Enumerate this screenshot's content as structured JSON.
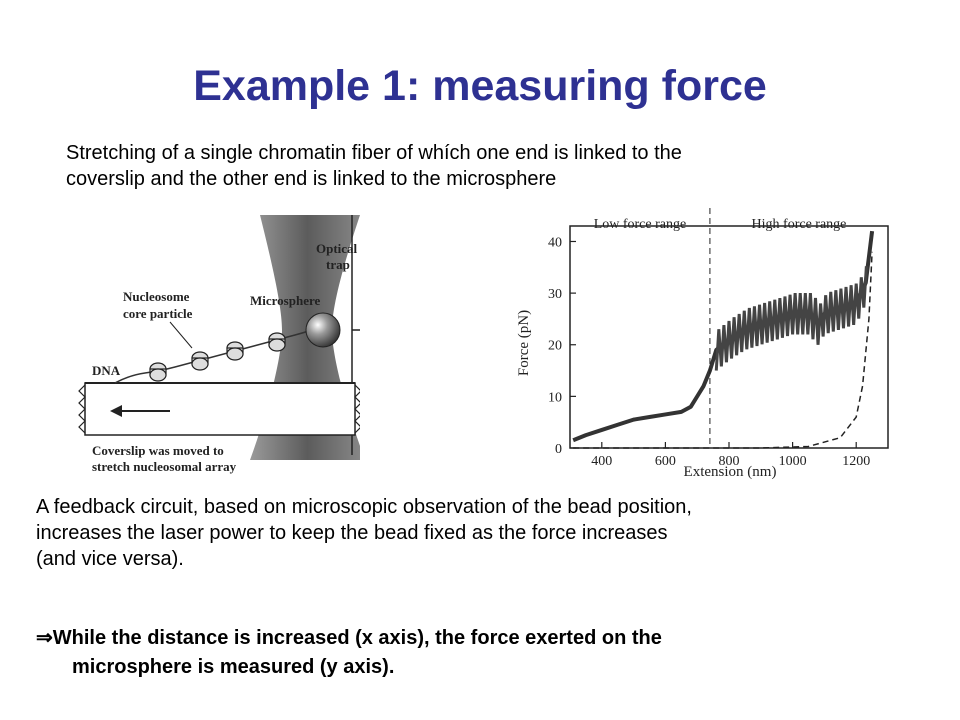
{
  "slide": {
    "title": "Example 1: measuring force",
    "intro_line1": "Stretching of a single chromatin fiber of whích one end is linked to the",
    "intro_line2": "coverslip and the other end is linked to the microsphere",
    "feedback_line1": "A feedback circuit, based on microscopic observation of the bead position,",
    "feedback_line2": "increases the laser power to keep the bead fixed as the force increases",
    "feedback_line3": "(and vice versa).",
    "arrow_symbol": "⇒",
    "conclusion_line1": "While the distance is increased (x axis), the force exerted on the",
    "conclusion_line2": "microsphere is measured (y axis)."
  },
  "diagram": {
    "optical_trap_label_1": "Optical",
    "optical_trap_label_2": "trap",
    "microsphere_label": "Microsphere",
    "nucleosome_label_1": "Nucleosome",
    "nucleosome_label_2": "core particle",
    "dna_label": "DNA",
    "coverslip_label_1": "Coverslip was moved to",
    "coverslip_label_2": "stretch nucleosomal array"
  },
  "chart_data": {
    "type": "line",
    "xlabel": "Extension (nm)",
    "ylabel": "Force (pN)",
    "xlim": [
      300,
      1300
    ],
    "ylim": [
      0,
      43
    ],
    "x_ticks": [
      "400",
      "600",
      "800",
      "1000",
      "1200"
    ],
    "y_ticks": [
      "0",
      "10",
      "20",
      "30",
      "40"
    ],
    "annotations": [
      "Low force range",
      "High force range"
    ],
    "range_divider_x": 740,
    "series": [
      {
        "x": [
          310,
          350,
          400,
          450,
          500,
          550,
          600,
          650,
          680,
          700,
          720,
          740,
          760,
          800,
          850,
          900,
          950,
          1000,
          1050,
          1080,
          1100,
          1150,
          1200,
          1230,
          1250
        ],
        "y": [
          1.5,
          2.5,
          3.5,
          4.5,
          5.5,
          6,
          6.5,
          7,
          8,
          10,
          12,
          15,
          19,
          21,
          23,
          24,
          25,
          26,
          26,
          24,
          26,
          27,
          28,
          32,
          42
        ]
      },
      {
        "x": [
          310,
          600,
          900,
          1050,
          1150,
          1200,
          1220,
          1240,
          1250
        ],
        "y": [
          0,
          0,
          0,
          0.3,
          2,
          6,
          12,
          25,
          38
        ]
      }
    ]
  }
}
